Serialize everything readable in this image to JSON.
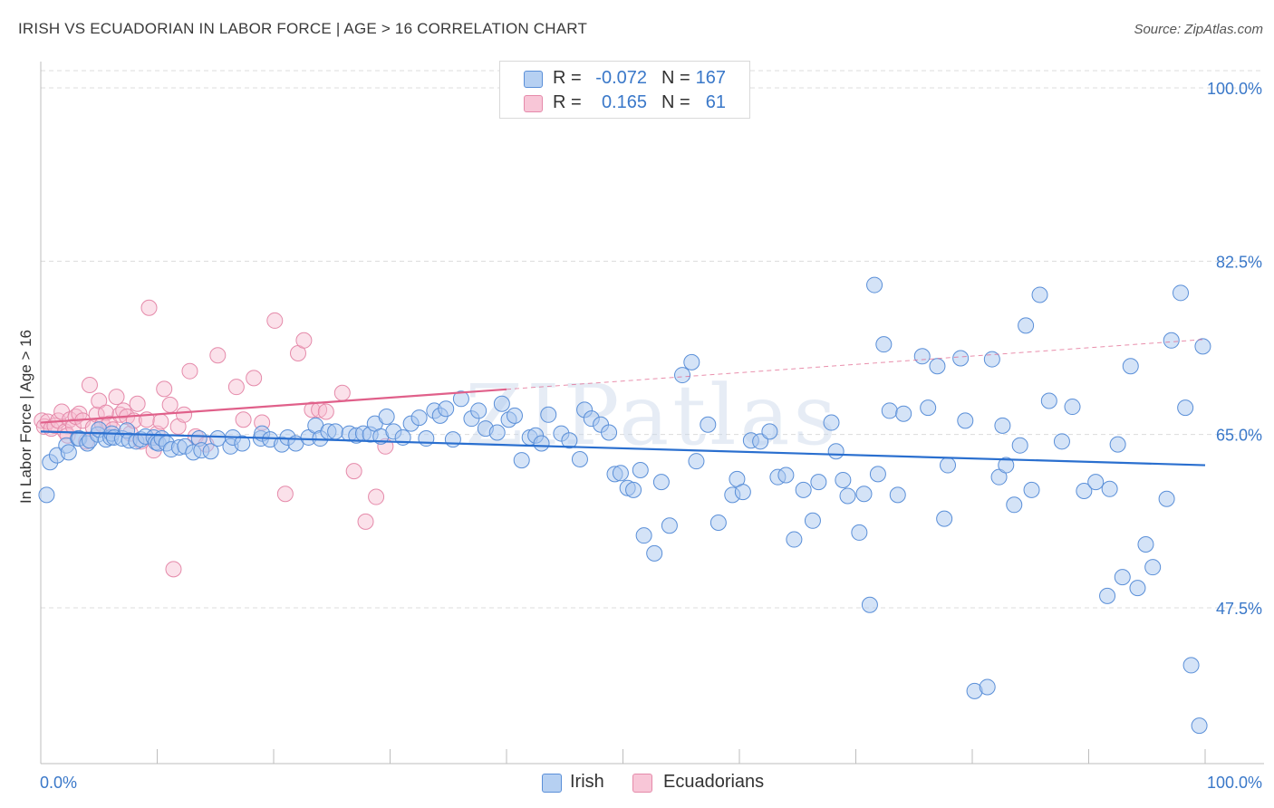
{
  "header": {
    "title": "IRISH VS ECUADORIAN IN LABOR FORCE | AGE > 16 CORRELATION CHART",
    "source": "Source: ZipAtlas.com"
  },
  "legend_top": [
    {
      "r_label": "R =",
      "r_value": "-0.072",
      "n_label": "N =",
      "n_value": "167"
    },
    {
      "r_label": "R =",
      "r_value": "0.165",
      "n_label": "N =",
      "n_value": "61"
    }
  ],
  "legend_bottom": [
    {
      "label": "Irish"
    },
    {
      "label": "Ecuadorians"
    }
  ],
  "watermark": "ZIPatlas",
  "colors": {
    "irish_fill": "#a9c8f0",
    "irish_stroke": "#5a8fd8",
    "irish_line": "#2a6fcf",
    "ecu_fill": "#f6bdd0",
    "ecu_stroke": "#e58aaa",
    "ecu_line": "#e0608a",
    "axis_text": "#3a78c9",
    "grid": "#dcdcdc"
  },
  "chart_data": {
    "type": "scatter",
    "title": "IRISH VS ECUADORIAN IN LABOR FORCE | AGE > 16 CORRELATION CHART",
    "xlabel": "",
    "ylabel": "In Labor Force | Age > 16",
    "xlim": [
      0,
      100
    ],
    "ylim": [
      30,
      100
    ],
    "x_tick_labels": [
      "0.0%",
      "100.0%"
    ],
    "y_ticks": [
      47.5,
      65.0,
      82.5,
      100.0
    ],
    "y_tick_labels": [
      "47.5%",
      "65.0%",
      "82.5%",
      "100.0%"
    ],
    "grid": true,
    "legend": "top-center",
    "series": [
      {
        "name": "Irish",
        "R": -0.072,
        "N": 167,
        "trend": {
          "x": [
            0,
            100
          ],
          "y": [
            65.3,
            61.9
          ],
          "dashed_from": null
        },
        "points": [
          [
            0.5,
            58.9
          ],
          [
            0.8,
            62.2
          ],
          [
            1.4,
            62.9
          ],
          [
            2.2,
            63.9
          ],
          [
            2.4,
            63.2
          ],
          [
            3.2,
            64.6
          ],
          [
            3.3,
            64.6
          ],
          [
            4.0,
            64.1
          ],
          [
            4.2,
            64.4
          ],
          [
            4.9,
            65.0
          ],
          [
            5.0,
            65.5
          ],
          [
            5.6,
            64.5
          ],
          [
            6.0,
            64.7
          ],
          [
            6.1,
            65.1
          ],
          [
            6.3,
            64.7
          ],
          [
            7.0,
            64.6
          ],
          [
            7.4,
            65.4
          ],
          [
            7.6,
            64.4
          ],
          [
            8.2,
            64.3
          ],
          [
            8.6,
            64.5
          ],
          [
            9.0,
            64.8
          ],
          [
            9.7,
            64.7
          ],
          [
            9.9,
            64.2
          ],
          [
            10.1,
            64.1
          ],
          [
            10.4,
            64.6
          ],
          [
            10.8,
            64.1
          ],
          [
            11.2,
            63.5
          ],
          [
            11.9,
            63.7
          ],
          [
            12.4,
            63.8
          ],
          [
            13.1,
            63.2
          ],
          [
            13.6,
            64.6
          ],
          [
            13.8,
            63.4
          ],
          [
            14.6,
            63.3
          ],
          [
            15.2,
            64.6
          ],
          [
            16.3,
            63.8
          ],
          [
            16.5,
            64.7
          ],
          [
            17.3,
            64.1
          ],
          [
            18.9,
            64.6
          ],
          [
            19.0,
            65.1
          ],
          [
            19.7,
            64.5
          ],
          [
            20.7,
            64.0
          ],
          [
            21.2,
            64.7
          ],
          [
            21.9,
            64.1
          ],
          [
            23.0,
            64.7
          ],
          [
            23.6,
            65.9
          ],
          [
            24.0,
            64.6
          ],
          [
            24.7,
            65.3
          ],
          [
            25.3,
            65.3
          ],
          [
            26.5,
            65.1
          ],
          [
            27.1,
            64.9
          ],
          [
            27.7,
            65.1
          ],
          [
            28.3,
            65.0
          ],
          [
            28.7,
            66.1
          ],
          [
            29.2,
            64.8
          ],
          [
            29.7,
            66.8
          ],
          [
            30.3,
            65.3
          ],
          [
            31.1,
            64.7
          ],
          [
            31.8,
            66.1
          ],
          [
            32.5,
            66.7
          ],
          [
            33.1,
            64.6
          ],
          [
            33.8,
            67.4
          ],
          [
            34.3,
            66.9
          ],
          [
            34.8,
            67.6
          ],
          [
            35.4,
            64.5
          ],
          [
            36.1,
            68.6
          ],
          [
            37.0,
            66.6
          ],
          [
            37.6,
            67.4
          ],
          [
            38.2,
            65.6
          ],
          [
            39.2,
            65.2
          ],
          [
            39.6,
            68.1
          ],
          [
            40.2,
            66.5
          ],
          [
            40.7,
            66.9
          ],
          [
            41.3,
            62.4
          ],
          [
            42.0,
            64.7
          ],
          [
            42.5,
            64.9
          ],
          [
            43.0,
            64.1
          ],
          [
            43.6,
            67.0
          ],
          [
            44.7,
            65.1
          ],
          [
            45.4,
            64.4
          ],
          [
            46.3,
            62.5
          ],
          [
            46.7,
            67.5
          ],
          [
            47.3,
            66.6
          ],
          [
            48.1,
            66.0
          ],
          [
            48.8,
            65.2
          ],
          [
            49.3,
            61.0
          ],
          [
            49.8,
            61.1
          ],
          [
            50.4,
            59.6
          ],
          [
            50.9,
            59.4
          ],
          [
            51.5,
            61.4
          ],
          [
            51.8,
            54.8
          ],
          [
            52.7,
            53.0
          ],
          [
            53.3,
            60.2
          ],
          [
            54.0,
            55.8
          ],
          [
            55.1,
            71.0
          ],
          [
            55.9,
            72.3
          ],
          [
            56.3,
            62.3
          ],
          [
            57.3,
            66.0
          ],
          [
            58.2,
            56.1
          ],
          [
            59.4,
            58.9
          ],
          [
            59.8,
            60.5
          ],
          [
            60.3,
            59.2
          ],
          [
            61.0,
            64.4
          ],
          [
            61.8,
            64.3
          ],
          [
            62.6,
            65.3
          ],
          [
            63.3,
            60.7
          ],
          [
            64.0,
            60.9
          ],
          [
            64.7,
            54.4
          ],
          [
            65.5,
            59.4
          ],
          [
            66.3,
            56.3
          ],
          [
            66.8,
            60.2
          ],
          [
            67.9,
            66.2
          ],
          [
            68.3,
            63.3
          ],
          [
            68.9,
            60.4
          ],
          [
            69.3,
            58.8
          ],
          [
            70.3,
            55.1
          ],
          [
            70.7,
            59.0
          ],
          [
            71.2,
            47.8
          ],
          [
            71.6,
            80.1
          ],
          [
            71.9,
            61.0
          ],
          [
            72.4,
            74.1
          ],
          [
            72.9,
            67.4
          ],
          [
            73.6,
            58.9
          ],
          [
            74.1,
            67.1
          ],
          [
            75.7,
            72.9
          ],
          [
            76.2,
            67.7
          ],
          [
            77.0,
            71.9
          ],
          [
            77.6,
            56.5
          ],
          [
            77.9,
            61.9
          ],
          [
            79.0,
            72.7
          ],
          [
            79.4,
            66.4
          ],
          [
            80.2,
            39.1
          ],
          [
            81.3,
            39.5
          ],
          [
            81.7,
            72.6
          ],
          [
            82.3,
            60.7
          ],
          [
            82.6,
            65.9
          ],
          [
            82.9,
            61.9
          ],
          [
            83.6,
            57.9
          ],
          [
            84.1,
            63.9
          ],
          [
            84.6,
            76.0
          ],
          [
            85.1,
            59.4
          ],
          [
            85.8,
            79.1
          ],
          [
            86.6,
            68.4
          ],
          [
            87.7,
            64.3
          ],
          [
            88.6,
            67.8
          ],
          [
            89.6,
            59.3
          ],
          [
            90.6,
            60.2
          ],
          [
            91.6,
            48.7
          ],
          [
            91.8,
            59.5
          ],
          [
            92.5,
            64.0
          ],
          [
            92.9,
            50.6
          ],
          [
            93.6,
            71.9
          ],
          [
            94.2,
            49.5
          ],
          [
            94.9,
            53.9
          ],
          [
            95.5,
            51.6
          ],
          [
            96.7,
            58.5
          ],
          [
            97.1,
            74.5
          ],
          [
            97.9,
            79.3
          ],
          [
            98.3,
            67.7
          ],
          [
            98.8,
            41.7
          ],
          [
            99.5,
            35.6
          ],
          [
            99.8,
            73.9
          ]
        ]
      },
      {
        "name": "Ecuadorians",
        "R": 0.165,
        "N": 61,
        "trend": {
          "x": [
            0,
            100
          ],
          "y": [
            66.2,
            74.6
          ],
          "dashed_from": 40
        },
        "points": [
          [
            0.1,
            66.4
          ],
          [
            0.3,
            65.8
          ],
          [
            0.6,
            66.3
          ],
          [
            0.9,
            65.6
          ],
          [
            1.2,
            65.9
          ],
          [
            1.5,
            66.4
          ],
          [
            1.8,
            67.3
          ],
          [
            2.1,
            65.3
          ],
          [
            2.3,
            64.9
          ],
          [
            2.5,
            66.5
          ],
          [
            2.8,
            65.8
          ],
          [
            3.0,
            66.8
          ],
          [
            3.3,
            67.1
          ],
          [
            3.6,
            66.4
          ],
          [
            3.9,
            64.3
          ],
          [
            4.2,
            70.0
          ],
          [
            4.5,
            65.7
          ],
          [
            4.8,
            67.0
          ],
          [
            5.0,
            68.4
          ],
          [
            5.3,
            66.0
          ],
          [
            5.6,
            67.2
          ],
          [
            5.9,
            66.1
          ],
          [
            6.2,
            65.5
          ],
          [
            6.5,
            68.8
          ],
          [
            6.8,
            67.0
          ],
          [
            7.1,
            67.4
          ],
          [
            7.4,
            66.8
          ],
          [
            7.7,
            65.1
          ],
          [
            8.0,
            66.4
          ],
          [
            8.3,
            68.1
          ],
          [
            8.6,
            64.3
          ],
          [
            9.1,
            66.5
          ],
          [
            9.3,
            77.8
          ],
          [
            9.7,
            63.4
          ],
          [
            10.0,
            65.1
          ],
          [
            10.3,
            66.3
          ],
          [
            10.6,
            69.6
          ],
          [
            11.1,
            68.0
          ],
          [
            11.4,
            51.4
          ],
          [
            11.8,
            65.8
          ],
          [
            12.3,
            67.0
          ],
          [
            12.8,
            71.4
          ],
          [
            13.3,
            64.8
          ],
          [
            14.2,
            64.0
          ],
          [
            15.2,
            73.0
          ],
          [
            16.8,
            69.8
          ],
          [
            17.4,
            66.5
          ],
          [
            18.3,
            70.7
          ],
          [
            19.0,
            66.2
          ],
          [
            20.1,
            76.5
          ],
          [
            21.0,
            59.0
          ],
          [
            22.1,
            73.2
          ],
          [
            22.6,
            74.5
          ],
          [
            23.3,
            67.5
          ],
          [
            23.9,
            67.5
          ],
          [
            24.5,
            67.3
          ],
          [
            25.9,
            69.2
          ],
          [
            26.9,
            61.3
          ],
          [
            27.9,
            56.2
          ],
          [
            28.8,
            58.7
          ],
          [
            29.6,
            63.8
          ]
        ]
      }
    ]
  }
}
